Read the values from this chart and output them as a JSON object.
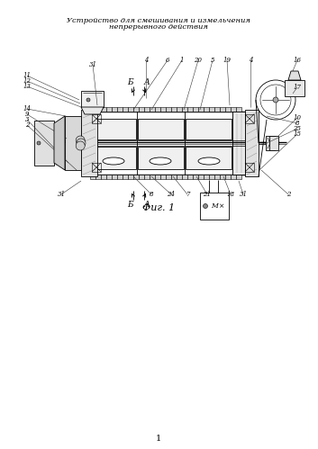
{
  "title_line1": "Устройство для смешивания и измельчения",
  "title_line2": "непрерывного действия",
  "fig_caption": "Фиг. 1",
  "page_number": "1",
  "bg_color": "#ffffff",
  "line_color": "#000000"
}
